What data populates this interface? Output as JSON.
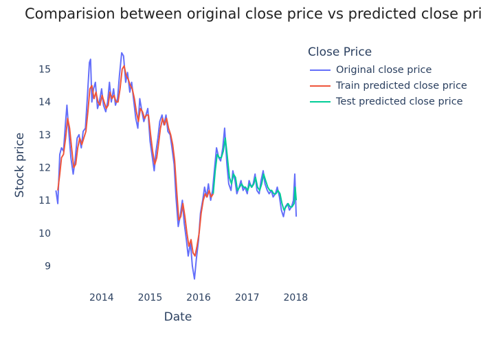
{
  "chart_data": {
    "type": "line",
    "title": "Comparision between original close price vs predicted close price",
    "xlabel": "Date",
    "ylabel": "Stock price",
    "x_range": [
      "2013-01-15",
      "2018-02-20"
    ],
    "y_range": [
      8.4,
      15.85
    ],
    "x_ticks": [
      {
        "date": "2014-01-01",
        "label": "2014"
      },
      {
        "date": "2015-01-01",
        "label": "2015"
      },
      {
        "date": "2016-01-01",
        "label": "2016"
      },
      {
        "date": "2017-01-01",
        "label": "2017"
      },
      {
        "date": "2018-01-01",
        "label": "2018"
      }
    ],
    "y_ticks": [
      9,
      10,
      11,
      12,
      13,
      14,
      15
    ],
    "grid": false,
    "legend": {
      "title": "Close Price",
      "position": "top-right"
    },
    "series": [
      {
        "name": "Original close price",
        "color": "#636efa",
        "points": [
          [
            "2013-01-22",
            11.3
          ],
          [
            "2013-02-05",
            10.9
          ],
          [
            "2013-02-20",
            12.4
          ],
          [
            "2013-03-05",
            12.6
          ],
          [
            "2013-03-20",
            12.5
          ],
          [
            "2013-04-05",
            13.4
          ],
          [
            "2013-04-15",
            13.9
          ],
          [
            "2013-05-01",
            13.0
          ],
          [
            "2013-05-15",
            12.3
          ],
          [
            "2013-06-01",
            11.8
          ],
          [
            "2013-06-15",
            12.2
          ],
          [
            "2013-07-01",
            12.9
          ],
          [
            "2013-07-15",
            13.0
          ],
          [
            "2013-08-01",
            12.6
          ],
          [
            "2013-08-15",
            13.1
          ],
          [
            "2013-09-01",
            13.2
          ],
          [
            "2013-09-15",
            14.1
          ],
          [
            "2013-10-01",
            15.2
          ],
          [
            "2013-10-10",
            15.3
          ],
          [
            "2013-10-20",
            14.0
          ],
          [
            "2013-11-01",
            14.4
          ],
          [
            "2013-11-15",
            14.6
          ],
          [
            "2013-12-01",
            13.8
          ],
          [
            "2013-12-15",
            14.0
          ],
          [
            "2014-01-01",
            14.4
          ],
          [
            "2014-01-15",
            13.9
          ],
          [
            "2014-02-01",
            13.7
          ],
          [
            "2014-02-15",
            14.0
          ],
          [
            "2014-03-01",
            14.6
          ],
          [
            "2014-03-15",
            14.0
          ],
          [
            "2014-04-01",
            14.4
          ],
          [
            "2014-04-15",
            13.9
          ],
          [
            "2014-05-01",
            14.1
          ],
          [
            "2014-05-15",
            14.8
          ],
          [
            "2014-06-01",
            15.5
          ],
          [
            "2014-06-15",
            15.4
          ],
          [
            "2014-07-01",
            14.6
          ],
          [
            "2014-07-15",
            14.9
          ],
          [
            "2014-08-01",
            14.3
          ],
          [
            "2014-08-15",
            14.6
          ],
          [
            "2014-09-01",
            14.0
          ],
          [
            "2014-09-15",
            13.5
          ],
          [
            "2014-10-01",
            13.2
          ],
          [
            "2014-10-15",
            14.1
          ],
          [
            "2014-11-01",
            13.7
          ],
          [
            "2014-11-15",
            13.4
          ],
          [
            "2014-12-01",
            13.6
          ],
          [
            "2014-12-15",
            13.8
          ],
          [
            "2015-01-01",
            12.8
          ],
          [
            "2015-01-15",
            12.4
          ],
          [
            "2015-02-01",
            11.9
          ],
          [
            "2015-02-15",
            12.5
          ],
          [
            "2015-03-01",
            12.9
          ],
          [
            "2015-03-15",
            13.4
          ],
          [
            "2015-04-01",
            13.6
          ],
          [
            "2015-04-15",
            13.3
          ],
          [
            "2015-05-01",
            13.6
          ],
          [
            "2015-05-15",
            13.1
          ],
          [
            "2015-06-01",
            13.0
          ],
          [
            "2015-06-15",
            12.6
          ],
          [
            "2015-07-01",
            12.1
          ],
          [
            "2015-07-15",
            11.1
          ],
          [
            "2015-08-01",
            10.2
          ],
          [
            "2015-08-15",
            10.5
          ],
          [
            "2015-09-01",
            11.0
          ],
          [
            "2015-09-15",
            10.3
          ],
          [
            "2015-10-01",
            9.8
          ],
          [
            "2015-10-15",
            9.3
          ],
          [
            "2015-11-01",
            9.7
          ],
          [
            "2015-11-15",
            9.0
          ],
          [
            "2015-12-01",
            8.6
          ],
          [
            "2015-12-15",
            9.2
          ],
          [
            "2016-01-01",
            9.8
          ],
          [
            "2016-01-15",
            10.6
          ],
          [
            "2016-02-01",
            11.0
          ],
          [
            "2016-02-15",
            11.4
          ],
          [
            "2016-03-01",
            11.1
          ],
          [
            "2016-03-15",
            11.5
          ],
          [
            "2016-04-01",
            11.0
          ],
          [
            "2016-04-15",
            11.3
          ],
          [
            "2016-05-01",
            12.0
          ],
          [
            "2016-05-15",
            12.6
          ],
          [
            "2016-06-01",
            12.3
          ],
          [
            "2016-06-15",
            12.2
          ],
          [
            "2016-07-01",
            12.6
          ],
          [
            "2016-07-15",
            13.2
          ],
          [
            "2016-08-01",
            12.1
          ],
          [
            "2016-08-15",
            11.5
          ],
          [
            "2016-09-01",
            11.3
          ],
          [
            "2016-09-15",
            11.9
          ],
          [
            "2016-10-01",
            11.6
          ],
          [
            "2016-10-15",
            11.2
          ],
          [
            "2016-11-01",
            11.4
          ],
          [
            "2016-11-15",
            11.6
          ],
          [
            "2016-12-01",
            11.3
          ],
          [
            "2016-12-15",
            11.4
          ],
          [
            "2017-01-01",
            11.2
          ],
          [
            "2017-01-15",
            11.6
          ],
          [
            "2017-02-01",
            11.4
          ],
          [
            "2017-02-15",
            11.5
          ],
          [
            "2017-03-01",
            11.8
          ],
          [
            "2017-03-15",
            11.3
          ],
          [
            "2017-04-01",
            11.2
          ],
          [
            "2017-04-15",
            11.6
          ],
          [
            "2017-05-01",
            11.9
          ],
          [
            "2017-05-15",
            11.5
          ],
          [
            "2017-06-01",
            11.3
          ],
          [
            "2017-06-15",
            11.2
          ],
          [
            "2017-07-01",
            11.3
          ],
          [
            "2017-07-15",
            11.1
          ],
          [
            "2017-08-01",
            11.2
          ],
          [
            "2017-08-15",
            11.4
          ],
          [
            "2017-09-01",
            11.1
          ],
          [
            "2017-09-15",
            10.7
          ],
          [
            "2017-10-01",
            10.5
          ],
          [
            "2017-10-15",
            10.8
          ],
          [
            "2017-11-01",
            10.9
          ],
          [
            "2017-11-15",
            10.7
          ],
          [
            "2017-12-01",
            10.8
          ],
          [
            "2017-12-15",
            11.0
          ],
          [
            "2017-12-25",
            11.8
          ],
          [
            "2018-01-05",
            10.5
          ]
        ]
      },
      {
        "name": "Train predicted close price",
        "color": "#ef553b",
        "points": [
          [
            "2013-02-05",
            11.3
          ],
          [
            "2013-02-20",
            11.8
          ],
          [
            "2013-03-05",
            12.3
          ],
          [
            "2013-03-20",
            12.4
          ],
          [
            "2013-04-05",
            12.9
          ],
          [
            "2013-04-20",
            13.5
          ],
          [
            "2013-05-05",
            13.2
          ],
          [
            "2013-05-20",
            12.6
          ],
          [
            "2013-06-05",
            12.0
          ],
          [
            "2013-06-20",
            12.1
          ],
          [
            "2013-07-05",
            12.6
          ],
          [
            "2013-07-20",
            12.9
          ],
          [
            "2013-08-05",
            12.7
          ],
          [
            "2013-08-20",
            12.9
          ],
          [
            "2013-09-05",
            13.1
          ],
          [
            "2013-09-20",
            13.7
          ],
          [
            "2013-10-05",
            14.4
          ],
          [
            "2013-10-20",
            14.5
          ],
          [
            "2013-11-05",
            14.1
          ],
          [
            "2013-11-20",
            14.3
          ],
          [
            "2013-12-05",
            14.0
          ],
          [
            "2013-12-20",
            13.9
          ],
          [
            "2014-01-05",
            14.2
          ],
          [
            "2014-01-20",
            14.0
          ],
          [
            "2014-02-05",
            13.8
          ],
          [
            "2014-02-20",
            13.9
          ],
          [
            "2014-03-05",
            14.3
          ],
          [
            "2014-03-20",
            14.1
          ],
          [
            "2014-04-05",
            14.2
          ],
          [
            "2014-04-20",
            14.0
          ],
          [
            "2014-05-05",
            14.0
          ],
          [
            "2014-05-20",
            14.4
          ],
          [
            "2014-06-05",
            15.0
          ],
          [
            "2014-06-20",
            15.1
          ],
          [
            "2014-07-05",
            14.8
          ],
          [
            "2014-07-20",
            14.7
          ],
          [
            "2014-08-05",
            14.5
          ],
          [
            "2014-08-20",
            14.4
          ],
          [
            "2014-09-05",
            14.1
          ],
          [
            "2014-09-20",
            13.7
          ],
          [
            "2014-10-05",
            13.4
          ],
          [
            "2014-10-20",
            13.8
          ],
          [
            "2014-11-05",
            13.7
          ],
          [
            "2014-11-20",
            13.5
          ],
          [
            "2014-12-05",
            13.6
          ],
          [
            "2014-12-20",
            13.6
          ],
          [
            "2015-01-05",
            13.0
          ],
          [
            "2015-01-20",
            12.5
          ],
          [
            "2015-02-05",
            12.1
          ],
          [
            "2015-02-20",
            12.3
          ],
          [
            "2015-03-05",
            12.7
          ],
          [
            "2015-03-20",
            13.2
          ],
          [
            "2015-04-05",
            13.5
          ],
          [
            "2015-04-20",
            13.3
          ],
          [
            "2015-05-05",
            13.5
          ],
          [
            "2015-05-20",
            13.2
          ],
          [
            "2015-06-05",
            13.0
          ],
          [
            "2015-06-20",
            12.7
          ],
          [
            "2015-07-05",
            12.2
          ],
          [
            "2015-07-20",
            11.3
          ],
          [
            "2015-08-05",
            10.4
          ],
          [
            "2015-08-20",
            10.5
          ],
          [
            "2015-09-05",
            10.9
          ],
          [
            "2015-09-20",
            10.5
          ],
          [
            "2015-10-05",
            10.0
          ],
          [
            "2015-10-20",
            9.6
          ],
          [
            "2015-11-05",
            9.8
          ],
          [
            "2015-11-20",
            9.4
          ],
          [
            "2015-12-05",
            9.3
          ],
          [
            "2015-12-20",
            9.6
          ],
          [
            "2016-01-05",
            10.0
          ],
          [
            "2016-01-20",
            10.6
          ],
          [
            "2016-02-05",
            11.0
          ],
          [
            "2016-02-20",
            11.2
          ],
          [
            "2016-03-05",
            11.1
          ],
          [
            "2016-03-20",
            11.3
          ],
          [
            "2016-04-05",
            11.1
          ],
          [
            "2016-04-20",
            11.2
          ]
        ]
      },
      {
        "name": "Test predicted close price",
        "color": "#00cc96",
        "points": [
          [
            "2016-04-20",
            11.2
          ],
          [
            "2016-05-05",
            11.9
          ],
          [
            "2016-05-20",
            12.4
          ],
          [
            "2016-06-05",
            12.3
          ],
          [
            "2016-06-20",
            12.3
          ],
          [
            "2016-07-05",
            12.5
          ],
          [
            "2016-07-20",
            12.9
          ],
          [
            "2016-08-05",
            12.3
          ],
          [
            "2016-08-20",
            11.7
          ],
          [
            "2016-09-05",
            11.5
          ],
          [
            "2016-09-20",
            11.8
          ],
          [
            "2016-10-05",
            11.7
          ],
          [
            "2016-10-20",
            11.3
          ],
          [
            "2016-11-05",
            11.4
          ],
          [
            "2016-11-20",
            11.5
          ],
          [
            "2016-12-05",
            11.4
          ],
          [
            "2016-12-20",
            11.4
          ],
          [
            "2017-01-05",
            11.3
          ],
          [
            "2017-01-20",
            11.5
          ],
          [
            "2017-02-05",
            11.4
          ],
          [
            "2017-02-20",
            11.5
          ],
          [
            "2017-03-05",
            11.7
          ],
          [
            "2017-03-20",
            11.4
          ],
          [
            "2017-04-05",
            11.3
          ],
          [
            "2017-04-20",
            11.5
          ],
          [
            "2017-05-05",
            11.8
          ],
          [
            "2017-05-20",
            11.6
          ],
          [
            "2017-06-05",
            11.4
          ],
          [
            "2017-06-20",
            11.3
          ],
          [
            "2017-07-05",
            11.3
          ],
          [
            "2017-07-20",
            11.2
          ],
          [
            "2017-08-05",
            11.2
          ],
          [
            "2017-08-20",
            11.3
          ],
          [
            "2017-09-05",
            11.2
          ],
          [
            "2017-09-20",
            10.9
          ],
          [
            "2017-10-05",
            10.7
          ],
          [
            "2017-10-20",
            10.8
          ],
          [
            "2017-11-05",
            10.9
          ],
          [
            "2017-11-20",
            10.8
          ],
          [
            "2017-12-05",
            10.8
          ],
          [
            "2017-12-20",
            10.9
          ],
          [
            "2017-12-28",
            11.4
          ],
          [
            "2018-01-05",
            11.0
          ]
        ]
      }
    ]
  }
}
